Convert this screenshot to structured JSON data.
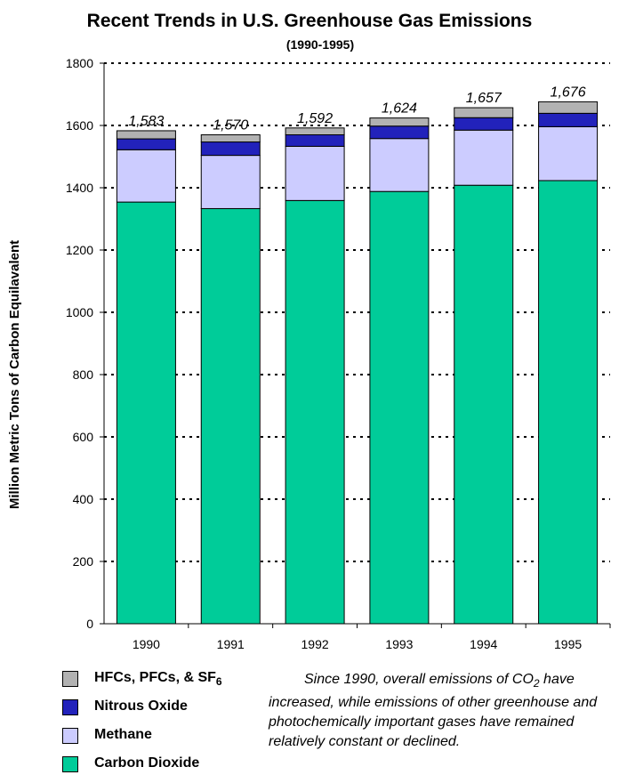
{
  "chart_data": {
    "type": "bar",
    "stacked": true,
    "title": "Recent Trends in U.S. Greenhouse Gas Emissions",
    "subtitle": "(1990-1995)",
    "xlabel": "",
    "ylabel": "Million Metric Tons of Carbon Equilavalent",
    "ylim": [
      0,
      1800
    ],
    "yticks": [
      0,
      200,
      400,
      600,
      800,
      1000,
      1200,
      1400,
      1600,
      1800
    ],
    "grid": true,
    "categories": [
      "1990",
      "1991",
      "1992",
      "1993",
      "1994",
      "1995"
    ],
    "series": [
      {
        "name": "Carbon Dioxide",
        "color": "#00cc99",
        "values": [
          1354,
          1333,
          1359,
          1388,
          1408,
          1423
        ]
      },
      {
        "name": "Methane",
        "color": "#ccccff",
        "values": [
          168,
          171,
          174,
          170,
          177,
          173
        ]
      },
      {
        "name": "Nitrous Oxide",
        "color": "#2222bb",
        "values": [
          35,
          43,
          37,
          40,
          40,
          43
        ]
      },
      {
        "name": "HFCs, PFCs, & SF6",
        "color": "#b2b2b2",
        "values": [
          26,
          23,
          22,
          26,
          32,
          37
        ]
      }
    ],
    "totals": [
      "1,583",
      "1,570",
      "1,592",
      "1,624",
      "1,657",
      "1,676"
    ],
    "legend_position": "bottom-left"
  },
  "legend": {
    "items": [
      {
        "main": "HFCs, PFCs, & SF",
        "sub": "6",
        "color": "#b2b2b2"
      },
      {
        "main": "Nitrous Oxide",
        "sub": "",
        "color": "#2222bb"
      },
      {
        "main": "Methane",
        "sub": "",
        "color": "#ccccff"
      },
      {
        "main": "Carbon Dioxide",
        "sub": "",
        "color": "#00cc99"
      }
    ]
  },
  "note": {
    "part1": "Since 1990, overall emissions of",
    "part2": "CO",
    "part2_sub": "2",
    "part3": " have increased, while emissions of other greenhouse and photochemically important gases have remained relatively constant or declined."
  }
}
